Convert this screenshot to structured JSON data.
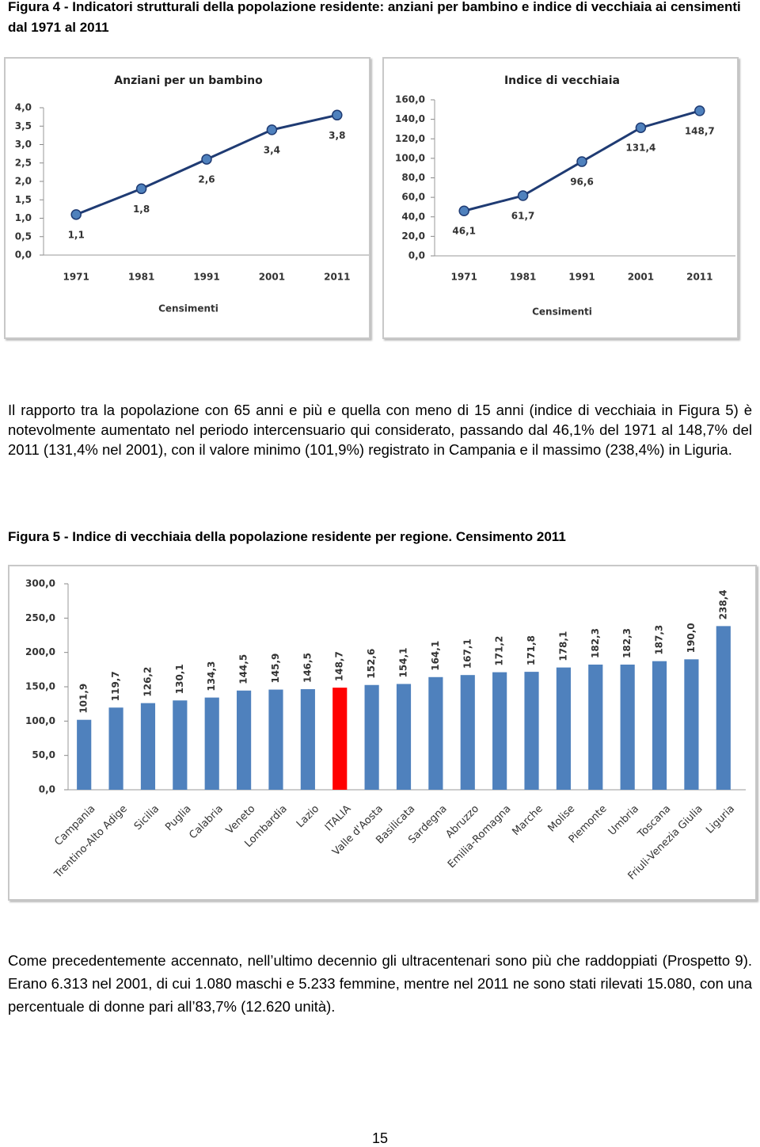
{
  "figure4_caption": "Figura 4 - Indicatori strutturali della popolazione residente: anziani per bambino e indice di vecchiaia ai censimenti dal 1971 al 2011",
  "chart_data": [
    {
      "type": "line",
      "title": "Anziani per un bambino",
      "x_label": "Censimenti",
      "categories": [
        "1971",
        "1981",
        "1991",
        "2001",
        "2011"
      ],
      "values": [
        1.1,
        1.8,
        2.6,
        3.4,
        3.8
      ],
      "value_labels": [
        "1,1",
        "1,8",
        "2,6",
        "3,4",
        "3,8"
      ],
      "color": "#1f3b73",
      "marker_color": "#4f81bd",
      "ylim": [
        0,
        4
      ],
      "yticks": [
        {
          "value": 0,
          "label": "0,0"
        },
        {
          "value": 0.5,
          "label": "0,5"
        },
        {
          "value": 1,
          "label": "1,0"
        },
        {
          "value": 1.5,
          "label": "1,5"
        },
        {
          "value": 2,
          "label": "2,0"
        },
        {
          "value": 2.5,
          "label": "2,5"
        },
        {
          "value": 3,
          "label": "3,0"
        },
        {
          "value": 3.5,
          "label": "3,5"
        },
        {
          "value": 4,
          "label": "4,0"
        }
      ]
    },
    {
      "type": "line",
      "title": "Indice di vecchiaia",
      "x_label": "Censimenti",
      "categories": [
        "1971",
        "1981",
        "1991",
        "2001",
        "2011"
      ],
      "values": [
        46.1,
        61.7,
        96.6,
        131.4,
        148.7
      ],
      "value_labels": [
        "46,1",
        "61,7",
        "96,6",
        "131,4",
        "148,7"
      ],
      "color": "#1f3b73",
      "marker_color": "#4f81bd",
      "ylim": [
        0,
        160
      ],
      "yticks": [
        {
          "value": 0,
          "label": "0,0"
        },
        {
          "value": 20,
          "label": "20,0"
        },
        {
          "value": 40,
          "label": "40,0"
        },
        {
          "value": 60,
          "label": "60,0"
        },
        {
          "value": 80,
          "label": "80,0"
        },
        {
          "value": 100,
          "label": "100,0"
        },
        {
          "value": 120,
          "label": "120,0"
        },
        {
          "value": 140,
          "label": "140,0"
        },
        {
          "value": 160,
          "label": "160,0"
        }
      ]
    },
    {
      "type": "bar",
      "categories": [
        "Campania",
        "Trentino-Alto Adige",
        "Sicilia",
        "Puglia",
        "Calabria",
        "Veneto",
        "Lombardia",
        "Lazio",
        "ITALIA",
        "Valle d'Aosta",
        "Basilicata",
        "Sardegna",
        "Abruzzo",
        "Emilia-Romagna",
        "Marche",
        "Molise",
        "Piemonte",
        "Umbria",
        "Toscana",
        "Friuli-Venezia Giulia",
        "Liguria"
      ],
      "values": [
        101.9,
        119.7,
        126.2,
        130.1,
        134.3,
        144.5,
        145.9,
        146.5,
        148.7,
        152.6,
        154.1,
        164.1,
        167.1,
        171.2,
        171.8,
        178.1,
        182.3,
        182.3,
        187.3,
        190.0,
        238.4
      ],
      "value_labels": [
        "101,9",
        "119,7",
        "126,2",
        "130,1",
        "134,3",
        "144,5",
        "145,9",
        "146,5",
        "148,7",
        "152,6",
        "154,1",
        "164,1",
        "167,1",
        "171,2",
        "171,8",
        "178,1",
        "182,3",
        "182,3",
        "187,3",
        "190,0",
        "238,4"
      ],
      "colors": [
        "#4f81bd",
        "#4f81bd",
        "#4f81bd",
        "#4f81bd",
        "#4f81bd",
        "#4f81bd",
        "#4f81bd",
        "#4f81bd",
        "#ff0000",
        "#4f81bd",
        "#4f81bd",
        "#4f81bd",
        "#4f81bd",
        "#4f81bd",
        "#4f81bd",
        "#4f81bd",
        "#4f81bd",
        "#4f81bd",
        "#4f81bd",
        "#4f81bd",
        "#4f81bd"
      ],
      "ylim": [
        0,
        300
      ],
      "yticks": [
        {
          "value": 0,
          "label": "0,0"
        },
        {
          "value": 50,
          "label": "50,0"
        },
        {
          "value": 100,
          "label": "100,0"
        },
        {
          "value": 150,
          "label": "150,0"
        },
        {
          "value": 200,
          "label": "200,0"
        },
        {
          "value": 250,
          "label": "250,0"
        },
        {
          "value": 300,
          "label": "300,0"
        }
      ]
    }
  ],
  "paragraph1": "Il rapporto tra la popolazione con 65 anni e più e quella con meno di 15 anni (indice di vecchiaia in Figura 5) è notevolmente aumentato nel periodo intercensuario qui considerato, passando dal 46,1% del 1971 al 148,7% del 2011 (131,4% nel 2001), con il valore minimo (101,9%) registrato in Campania e il massimo (238,4%) in Liguria.",
  "figure5_caption": "Figura 5 - Indice di vecchiaia della popolazione residente per regione. Censimento 2011",
  "paragraph2": "Come precedentemente accennato, nell’ultimo decennio gli ultracentenari sono più che raddoppiati (Prospetto 9). Erano 6.313 nel 2001, di cui 1.080 maschi e 5.233 femmine, mentre nel 2011 ne sono stati rilevati 15.080, con una percentuale di donne pari all’83,7% (12.620 unità).",
  "page_number": "15"
}
